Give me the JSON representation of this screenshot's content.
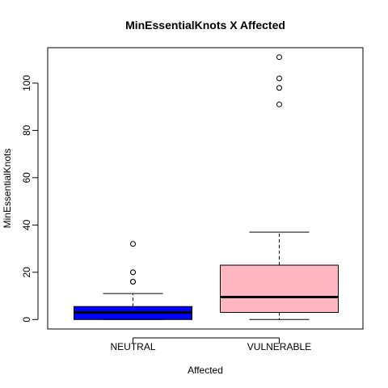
{
  "chart_data": {
    "type": "boxplot",
    "title": "MinEssentialKnots X Affected",
    "xlabel": "Affected",
    "ylabel": "MinEssentialKnots",
    "ylim": [
      -4,
      115
    ],
    "yticks": [
      0,
      20,
      40,
      60,
      80,
      100
    ],
    "grid": false,
    "categories": [
      "NEUTRAL",
      "VULNERABLE"
    ],
    "boxes": [
      {
        "category": "NEUTRAL",
        "whisker_low": 0,
        "q1": 0,
        "median": 3,
        "q3": 5.5,
        "whisker_high": 11,
        "outliers": [
          16,
          16,
          20,
          20,
          32
        ],
        "color": "#0000ff"
      },
      {
        "category": "VULNERABLE",
        "whisker_low": 0,
        "q1": 3,
        "median": 9.5,
        "q3": 23,
        "whisker_high": 37,
        "outliers": [
          91,
          98,
          102,
          111
        ],
        "color": "#ffb6c1"
      }
    ]
  }
}
